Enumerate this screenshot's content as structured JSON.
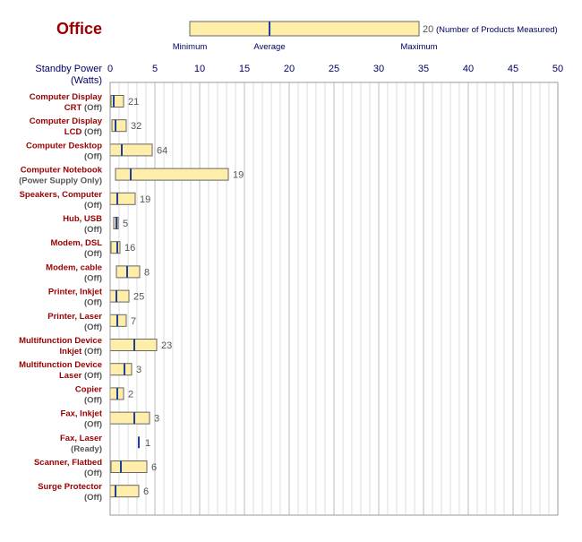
{
  "colors": {
    "title": "#990000",
    "category": "#990000",
    "axis_text": "#000066",
    "bar_fill": "#ffeeaa",
    "bar_stroke": "#666666",
    "avg_marker": "#1f3f99",
    "grid_minor": "#dddddd",
    "count_text": "#555555",
    "qualifier_text": "#555555"
  },
  "chart_data": {
    "type": "range-bar",
    "title": "Office",
    "ylabel_line1": "Standby Power",
    "ylabel_line2": "(Watts)",
    "xlim": [
      0,
      50
    ],
    "ticks": [
      0,
      5,
      10,
      15,
      20,
      25,
      30,
      35,
      40,
      45,
      50
    ],
    "grid": true,
    "legend": {
      "count": "20",
      "count_label": "(Number of Products Measured)",
      "min_label": "Minimum",
      "avg_label": "Average",
      "max_label": "Maximum"
    },
    "categories": [
      {
        "name": "Computer Display",
        "name2": "CRT",
        "qualifier": "(Off)",
        "min": 0.1,
        "avg": 0.4,
        "max": 1.5,
        "count": "21"
      },
      {
        "name": "Computer Display",
        "name2": "LCD",
        "qualifier": "(Off)",
        "min": 0.2,
        "avg": 0.6,
        "max": 1.8,
        "count": "32"
      },
      {
        "name": "Computer Desktop",
        "name2": "",
        "qualifier": "(Off)",
        "min": 0.0,
        "avg": 1.3,
        "max": 4.7,
        "count": "64"
      },
      {
        "name": "Computer Notebook",
        "name2": "",
        "qualifier": "(Power Supply Only)",
        "min": 0.6,
        "avg": 2.3,
        "max": 13.2,
        "count": "19"
      },
      {
        "name": "Speakers, Computer",
        "name2": "",
        "qualifier": "(Off)",
        "min": 0.0,
        "avg": 0.8,
        "max": 2.8,
        "count": "19"
      },
      {
        "name": "Hub, USB",
        "name2": "",
        "qualifier": "(Off)",
        "min": 0.4,
        "avg": 0.7,
        "max": 0.9,
        "count": "5"
      },
      {
        "name": "Modem, DSL",
        "name2": "",
        "qualifier": "(Off)",
        "min": 0.1,
        "avg": 0.8,
        "max": 1.1,
        "count": "16"
      },
      {
        "name": "Modem, cable",
        "name2": "",
        "qualifier": "(Off)",
        "min": 0.7,
        "avg": 1.9,
        "max": 3.3,
        "count": "8"
      },
      {
        "name": "Printer, Inkjet",
        "name2": "",
        "qualifier": "(Off)",
        "min": 0.0,
        "avg": 0.7,
        "max": 2.1,
        "count": "25"
      },
      {
        "name": "Printer, Laser",
        "name2": "",
        "qualifier": "(Off)",
        "min": 0.0,
        "avg": 0.8,
        "max": 1.8,
        "count": "7"
      },
      {
        "name": "Multifunction Device",
        "name2": "Inkjet",
        "qualifier": "(Off)",
        "min": 0.0,
        "avg": 2.7,
        "max": 5.2,
        "count": "23"
      },
      {
        "name": "Multifunction Device",
        "name2": "Laser",
        "qualifier": "(Off)",
        "min": 0.0,
        "avg": 1.6,
        "max": 2.4,
        "count": "3"
      },
      {
        "name": "Copier",
        "name2": "",
        "qualifier": "(Off)",
        "min": 0.0,
        "avg": 0.8,
        "max": 1.5,
        "count": "2"
      },
      {
        "name": "Fax, Inkjet",
        "name2": "",
        "qualifier": "(Off)",
        "min": 0.0,
        "avg": 2.7,
        "max": 4.4,
        "count": "3"
      },
      {
        "name": "Fax, Laser",
        "name2": "",
        "qualifier": "(Ready)",
        "min": 3.2,
        "avg": 3.2,
        "max": 3.2,
        "count": "1"
      },
      {
        "name": "Scanner, Flatbed",
        "name2": "",
        "qualifier": "(Off)",
        "min": 0.1,
        "avg": 1.2,
        "max": 4.1,
        "count": "6"
      },
      {
        "name": "Surge Protector",
        "name2": "",
        "qualifier": "(Off)",
        "min": 0.0,
        "avg": 0.6,
        "max": 3.2,
        "count": "6"
      }
    ]
  }
}
